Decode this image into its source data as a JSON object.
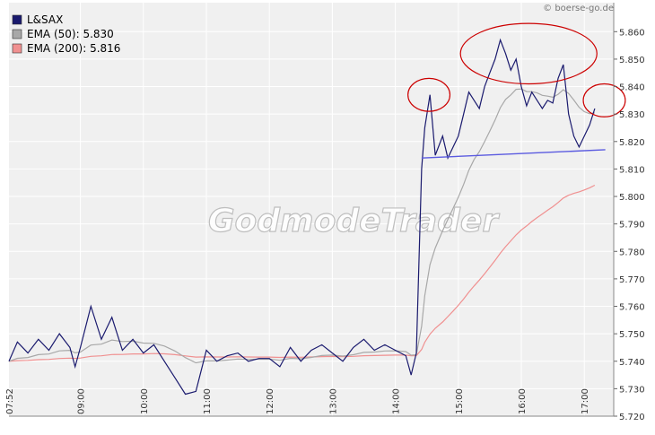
{
  "source": "© boerse-go.de",
  "watermark": "GodmodeTrader",
  "chart_data": {
    "type": "line",
    "title": "",
    "xlabel": "",
    "ylabel": "",
    "grid": true,
    "legend_placement": "top-left",
    "x_ticks": [
      "07:52",
      "09:00",
      "10:00",
      "11:00",
      "12:00",
      "13:00",
      "14:00",
      "15:00",
      "16:00",
      "17:00"
    ],
    "ylim": [
      5.72,
      5.865
    ],
    "y_ticks": [
      "5.720",
      "5.730",
      "5.740",
      "5.750",
      "5.760",
      "5.770",
      "5.780",
      "5.790",
      "5.800",
      "5.810",
      "5.820",
      "5.830",
      "5.840",
      "5.850",
      "5.860"
    ],
    "series": [
      {
        "name": "L&SAX",
        "color": "#1a1a6e",
        "points": [
          [
            "07:52",
            5.74
          ],
          [
            "08:00",
            5.747
          ],
          [
            "08:10",
            5.743
          ],
          [
            "08:20",
            5.748
          ],
          [
            "08:30",
            5.744
          ],
          [
            "08:40",
            5.75
          ],
          [
            "08:50",
            5.745
          ],
          [
            "08:55",
            5.738
          ],
          [
            "09:00",
            5.745
          ],
          [
            "09:10",
            5.76
          ],
          [
            "09:20",
            5.748
          ],
          [
            "09:30",
            5.756
          ],
          [
            "09:40",
            5.744
          ],
          [
            "09:50",
            5.748
          ],
          [
            "10:00",
            5.743
          ],
          [
            "10:10",
            5.746
          ],
          [
            "10:20",
            5.74
          ],
          [
            "10:30",
            5.734
          ],
          [
            "10:40",
            5.728
          ],
          [
            "10:50",
            5.729
          ],
          [
            "11:00",
            5.744
          ],
          [
            "11:10",
            5.74
          ],
          [
            "11:20",
            5.742
          ],
          [
            "11:30",
            5.743
          ],
          [
            "11:40",
            5.74
          ],
          [
            "11:50",
            5.741
          ],
          [
            "12:00",
            5.741
          ],
          [
            "12:10",
            5.738
          ],
          [
            "12:20",
            5.745
          ],
          [
            "12:30",
            5.74
          ],
          [
            "12:40",
            5.744
          ],
          [
            "12:50",
            5.746
          ],
          [
            "13:00",
            5.743
          ],
          [
            "13:10",
            5.74
          ],
          [
            "13:20",
            5.745
          ],
          [
            "13:30",
            5.748
          ],
          [
            "13:40",
            5.744
          ],
          [
            "13:50",
            5.746
          ],
          [
            "14:00",
            5.744
          ],
          [
            "14:10",
            5.742
          ],
          [
            "14:15",
            5.735
          ],
          [
            "14:20",
            5.743
          ],
          [
            "14:25",
            5.81
          ],
          [
            "14:28",
            5.825
          ],
          [
            "14:33",
            5.837
          ],
          [
            "14:38",
            5.815
          ],
          [
            "14:45",
            5.822
          ],
          [
            "14:50",
            5.814
          ],
          [
            "14:55",
            5.818
          ],
          [
            "15:00",
            5.822
          ],
          [
            "15:05",
            5.83
          ],
          [
            "15:10",
            5.838
          ],
          [
            "15:15",
            5.835
          ],
          [
            "15:20",
            5.832
          ],
          [
            "15:25",
            5.84
          ],
          [
            "15:30",
            5.845
          ],
          [
            "15:35",
            5.85
          ],
          [
            "15:40",
            5.857
          ],
          [
            "15:45",
            5.852
          ],
          [
            "15:50",
            5.846
          ],
          [
            "15:55",
            5.85
          ],
          [
            "16:00",
            5.84
          ],
          [
            "16:05",
            5.833
          ],
          [
            "16:10",
            5.838
          ],
          [
            "16:15",
            5.835
          ],
          [
            "16:20",
            5.832
          ],
          [
            "16:25",
            5.835
          ],
          [
            "16:30",
            5.834
          ],
          [
            "16:35",
            5.843
          ],
          [
            "16:40",
            5.848
          ],
          [
            "16:45",
            5.83
          ],
          [
            "16:50",
            5.822
          ],
          [
            "16:55",
            5.818
          ],
          [
            "17:00",
            5.822
          ],
          [
            "17:05",
            5.826
          ],
          [
            "17:10",
            5.832
          ]
        ]
      },
      {
        "name": "EMA (50): 5.830",
        "color": "#a8a8a8"
      },
      {
        "name": "EMA (200): 5.816",
        "color": "#f09090"
      }
    ],
    "annotations": [
      {
        "type": "trendline",
        "color": "#5b5be0",
        "from": [
          "14:25",
          5.814
        ],
        "to": [
          "17:20",
          5.817
        ]
      },
      {
        "type": "ellipse",
        "color": "#cc0000",
        "center": [
          "14:32",
          5.837
        ],
        "rx_minutes": 20,
        "ry_value": 0.006
      },
      {
        "type": "ellipse",
        "color": "#cc0000",
        "center": [
          "16:07",
          5.852
        ],
        "rx_minutes": 65,
        "ry_value": 0.011
      },
      {
        "type": "ellipse",
        "color": "#cc0000",
        "center": [
          "17:19",
          5.835
        ],
        "rx_minutes": 20,
        "ry_value": 0.006
      }
    ]
  }
}
